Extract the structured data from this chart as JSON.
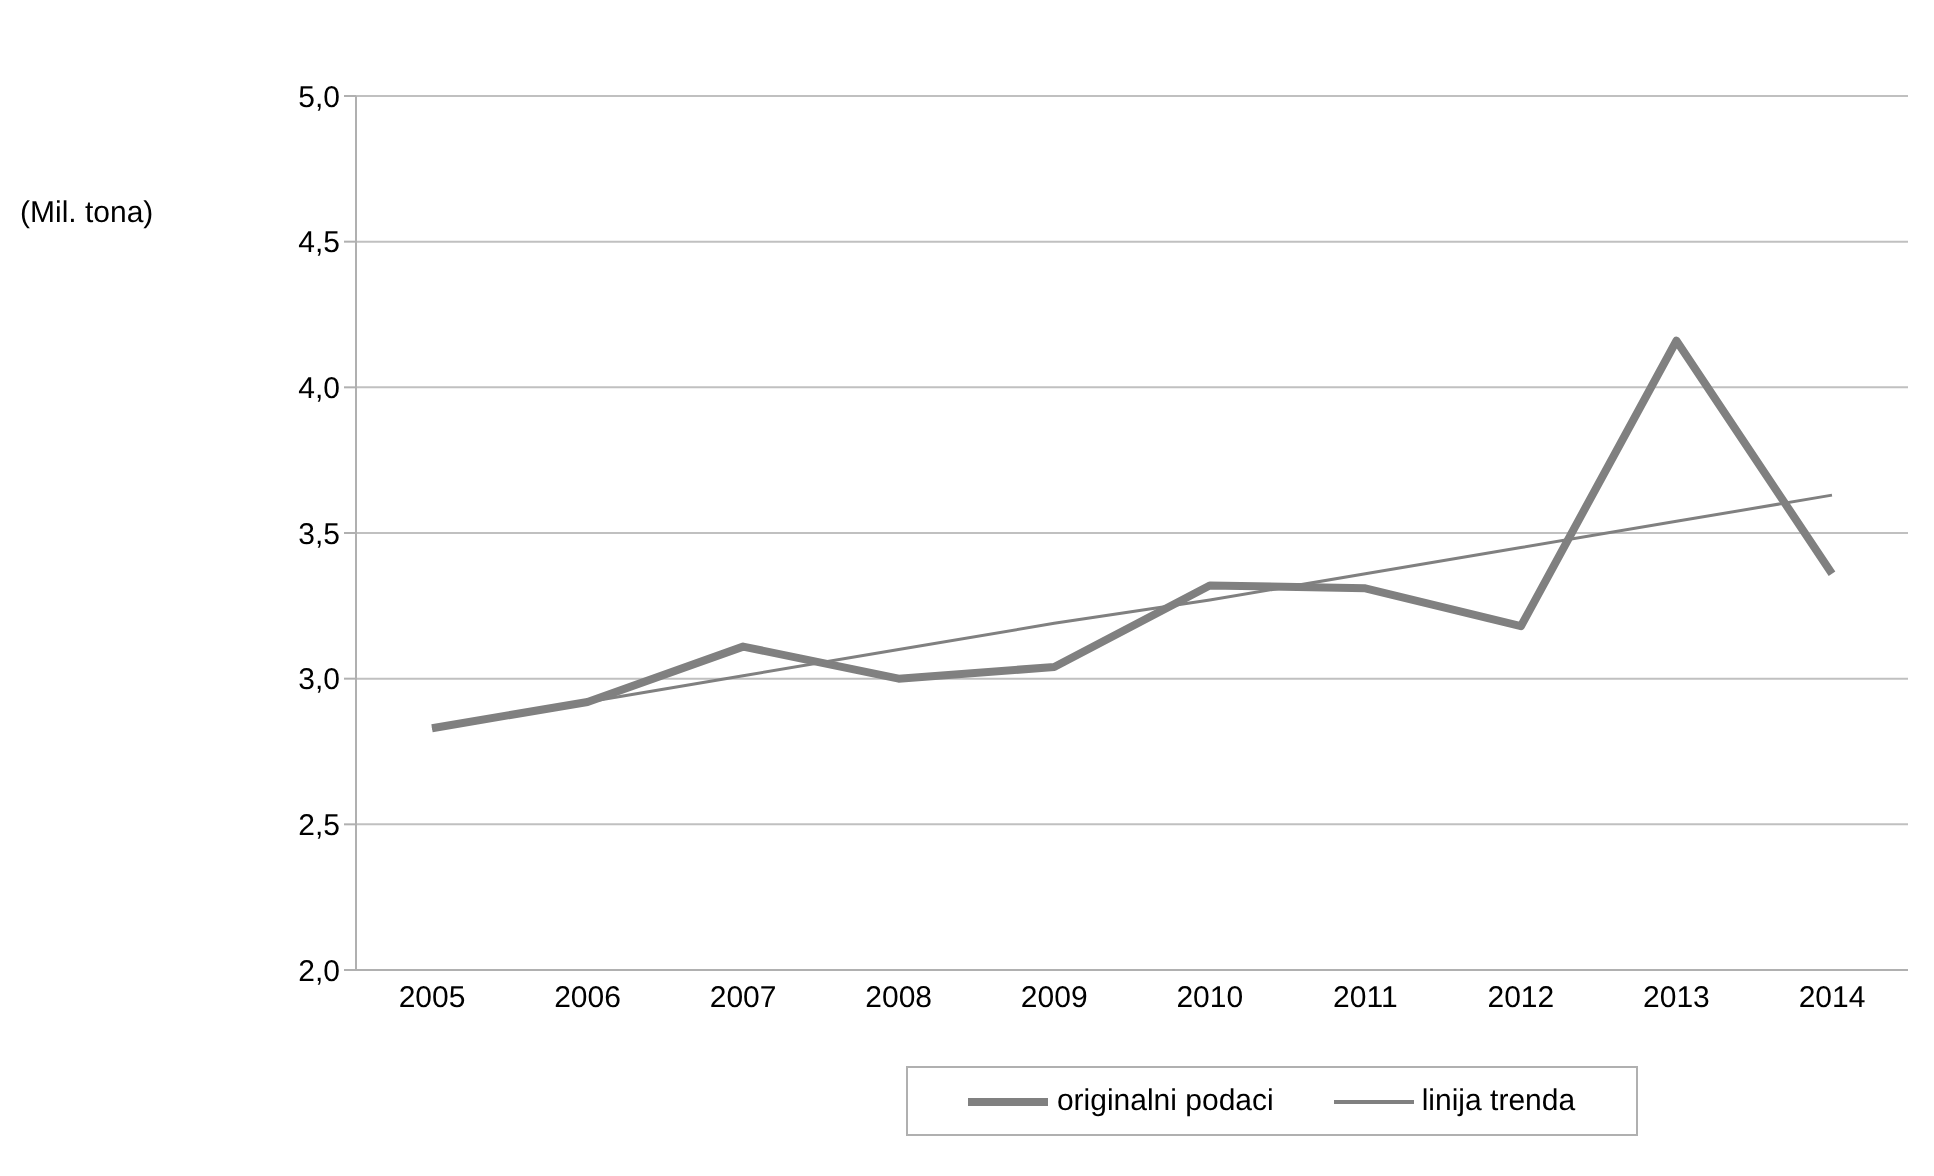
{
  "chart_data": {
    "type": "line",
    "ylabel": "(Mil. tona)",
    "categories": [
      "2005",
      "2006",
      "2007",
      "2008",
      "2009",
      "2010",
      "2011",
      "2012",
      "2013",
      "2014"
    ],
    "series": [
      {
        "name": "originalni podaci",
        "color": "#808080",
        "values": [
          2.83,
          2.92,
          3.11,
          3.0,
          3.04,
          3.32,
          3.31,
          3.18,
          4.16,
          3.36
        ]
      },
      {
        "name": "linija trenda",
        "color": "#808080",
        "values": [
          2.83,
          2.92,
          3.01,
          3.1,
          3.19,
          3.27,
          3.36,
          3.45,
          3.54,
          3.63
        ]
      }
    ],
    "ylim": [
      2,
      5
    ],
    "yticks": [
      {
        "value": 2,
        "label": "2,0"
      },
      {
        "value": 2.5,
        "label": "2,5"
      },
      {
        "value": 3,
        "label": "3,0"
      },
      {
        "value": 3.5,
        "label": "3,5"
      },
      {
        "value": 4,
        "label": "4,0"
      },
      {
        "value": 4.5,
        "label": "4,5"
      },
      {
        "value": 5,
        "label": "5,0"
      }
    ],
    "grid": "y",
    "legend": "bottom",
    "marker": "none",
    "line_style": "solid"
  }
}
